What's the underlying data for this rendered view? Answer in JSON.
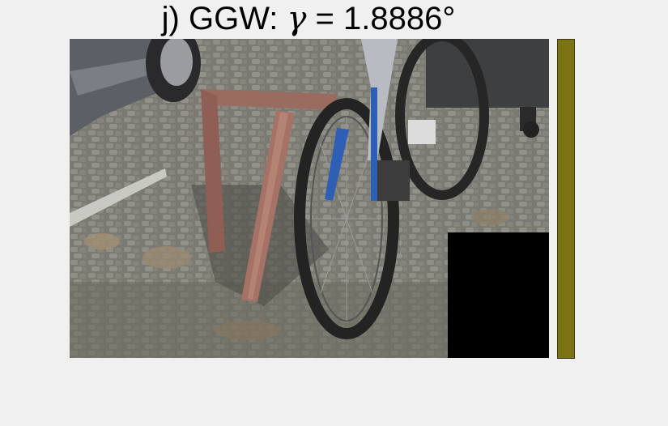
{
  "figure": {
    "title_prefix": "j) GGW: ",
    "title_symbol": "γ",
    "title_equals": " = ",
    "title_value": "1.8886",
    "title_unit": "°"
  },
  "photo": {
    "subject": "bicycle"
  },
  "estimated_illuminant": {
    "color": "#7c7414"
  }
}
